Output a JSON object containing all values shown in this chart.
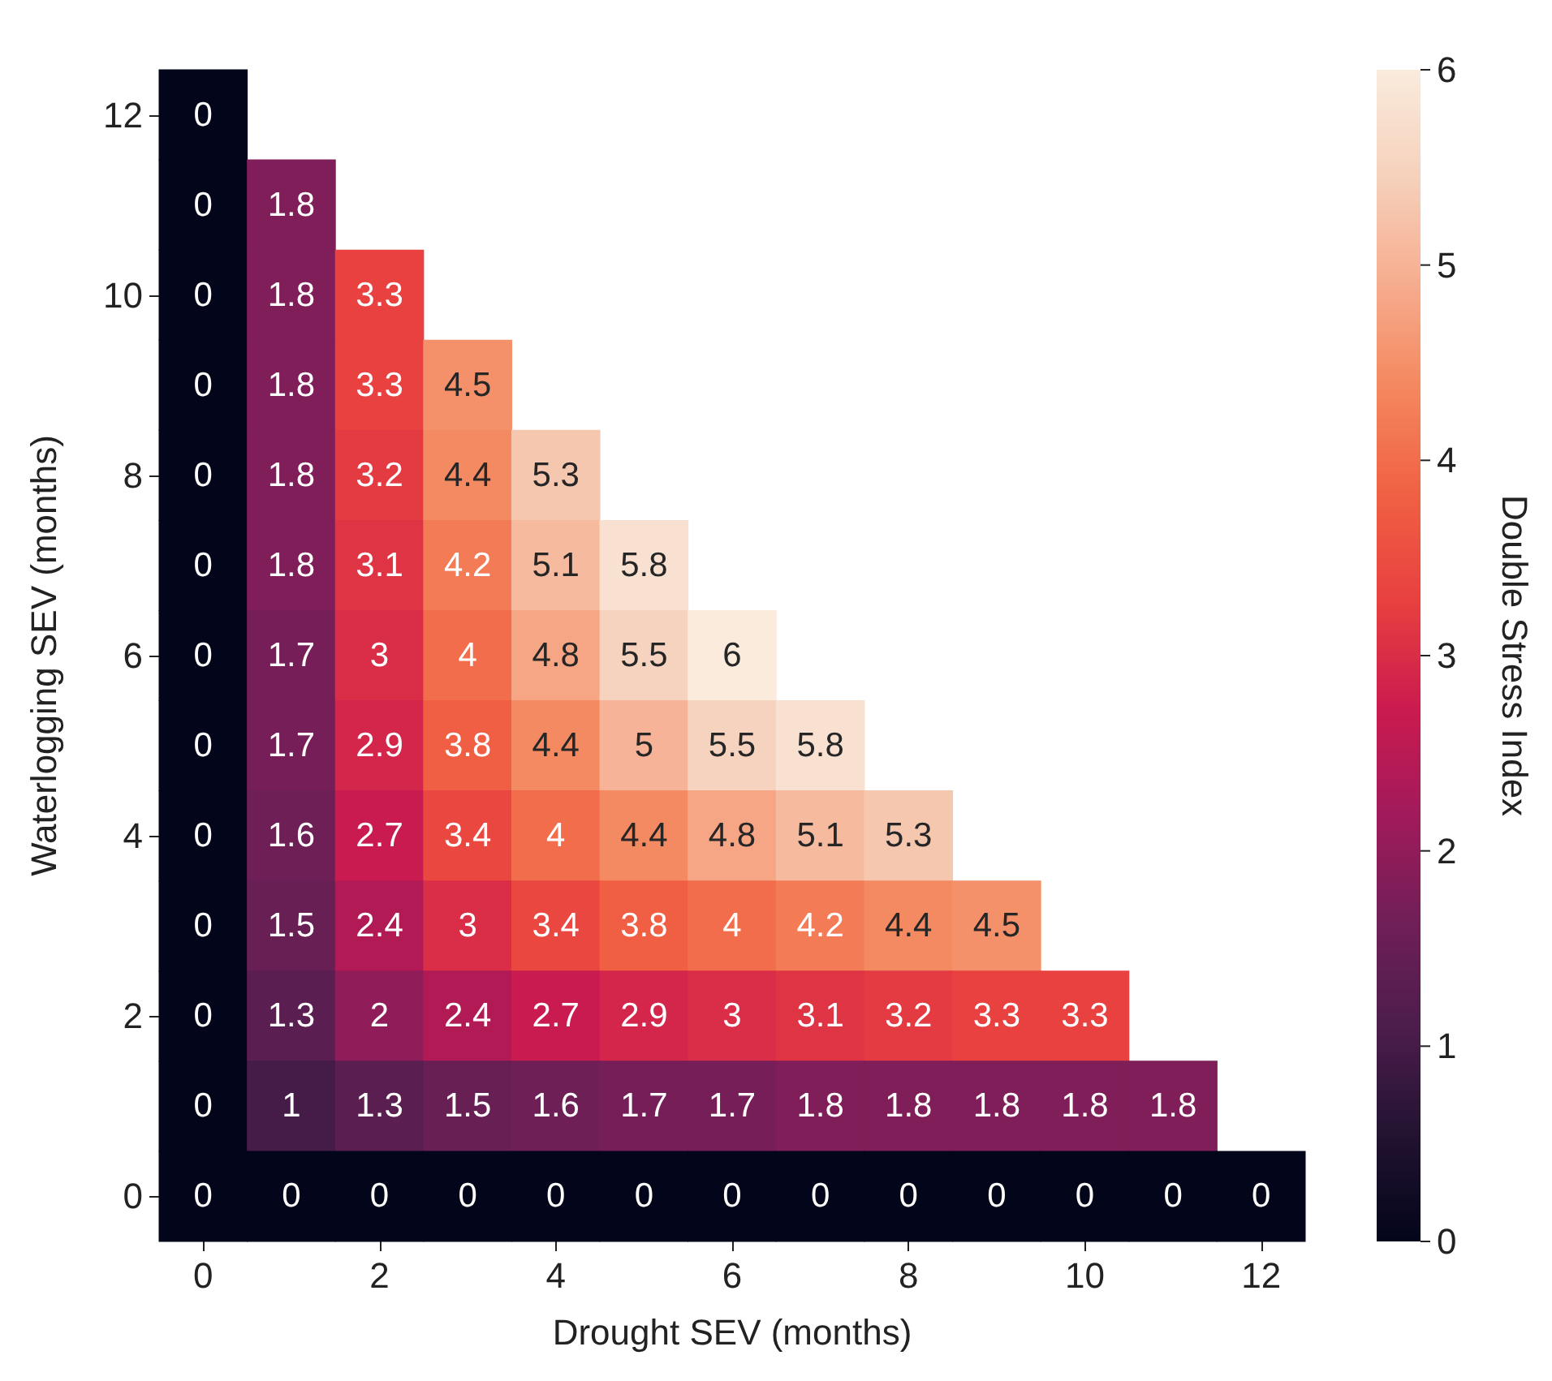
{
  "chart_data": {
    "type": "heatmap",
    "xlabel": "Drought SEV (months)",
    "ylabel": "Waterlogging SEV (months)",
    "clabel": "Double Stress Index",
    "categories": [
      "0",
      null,
      "2",
      null,
      "4",
      null,
      "6",
      null,
      "8",
      null,
      "10",
      null,
      "12"
    ],
    "y_categories": [
      "12",
      null,
      "10",
      null,
      "8",
      null,
      "6",
      null,
      "4",
      null,
      "2",
      null,
      "0"
    ],
    "cells": [
      [
        0,
        null,
        null,
        null,
        null,
        null,
        null,
        null,
        null,
        null,
        null,
        null,
        null
      ],
      [
        0,
        1.8,
        null,
        null,
        null,
        null,
        null,
        null,
        null,
        null,
        null,
        null,
        null
      ],
      [
        0,
        1.8,
        3.3,
        null,
        null,
        null,
        null,
        null,
        null,
        null,
        null,
        null,
        null
      ],
      [
        0,
        1.8,
        3.3,
        4.5,
        null,
        null,
        null,
        null,
        null,
        null,
        null,
        null,
        null
      ],
      [
        0,
        1.8,
        3.2,
        4.4,
        5.3,
        null,
        null,
        null,
        null,
        null,
        null,
        null,
        null
      ],
      [
        0,
        1.8,
        3.1,
        4.2,
        5.1,
        5.8,
        null,
        null,
        null,
        null,
        null,
        null,
        null
      ],
      [
        0,
        1.7,
        3,
        4,
        4.8,
        5.5,
        6,
        null,
        null,
        null,
        null,
        null,
        null
      ],
      [
        0,
        1.7,
        2.9,
        3.8,
        4.4,
        5,
        5.5,
        5.8,
        null,
        null,
        null,
        null,
        null
      ],
      [
        0,
        1.6,
        2.7,
        3.4,
        4,
        4.4,
        4.8,
        5.1,
        5.3,
        null,
        null,
        null,
        null
      ],
      [
        0,
        1.5,
        2.4,
        3,
        3.4,
        3.8,
        4,
        4.2,
        4.4,
        4.5,
        null,
        null,
        null
      ],
      [
        0,
        1.3,
        2,
        2.4,
        2.7,
        2.9,
        3,
        3.1,
        3.2,
        3.3,
        3.3,
        null,
        null
      ],
      [
        0,
        1,
        1.3,
        1.5,
        1.6,
        1.7,
        1.7,
        1.8,
        1.8,
        1.8,
        1.8,
        1.8,
        null
      ],
      [
        0,
        0,
        0,
        0,
        0,
        0,
        0,
        0,
        0,
        0,
        0,
        0,
        0
      ]
    ],
    "data_labels": true,
    "clim": [
      0,
      6
    ],
    "cticks": [
      0,
      1,
      2,
      3,
      4,
      5,
      6
    ],
    "grid": false
  }
}
